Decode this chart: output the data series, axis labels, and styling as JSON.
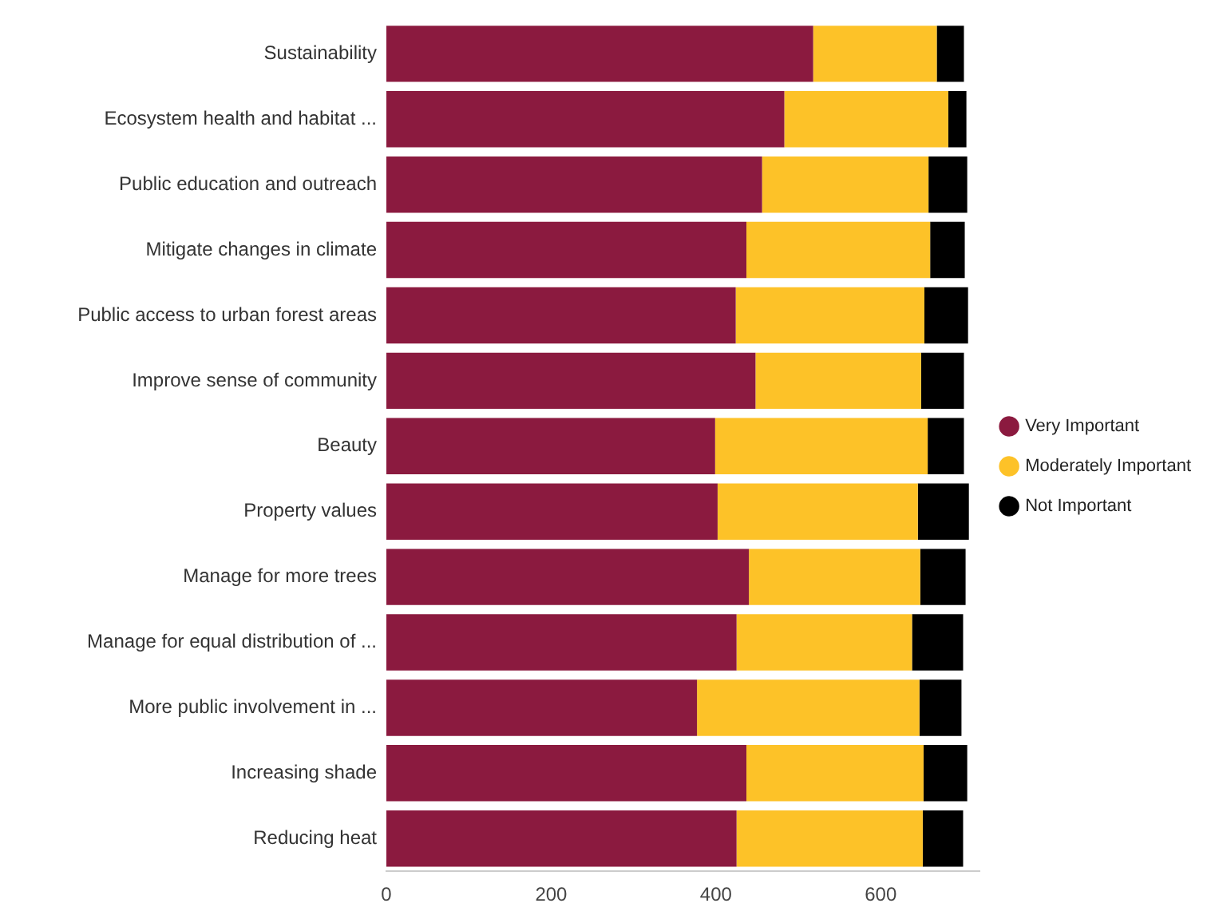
{
  "chart_data": {
    "type": "bar",
    "orientation": "horizontal",
    "stacked": true,
    "categories": [
      "Sustainability",
      "Ecosystem health and habitat ...",
      "Public education and outreach",
      "Mitigate changes in climate",
      "Public access to urban forest areas",
      "Improve sense of community",
      "Beauty",
      "Property values",
      "Manage for more trees",
      "Manage for equal distribution of ...",
      "More public involvement in ...",
      "Increasing shade",
      "Reducing heat"
    ],
    "series": [
      {
        "name": "Very Important",
        "color": "#8b1a3f",
        "values": [
          518,
          483,
          456,
          437,
          424,
          448,
          399,
          402,
          440,
          425,
          377,
          437,
          425
        ]
      },
      {
        "name": "Moderately Important",
        "color": "#fdc228",
        "values": [
          150,
          199,
          202,
          223,
          229,
          201,
          258,
          243,
          208,
          213,
          270,
          215,
          226
        ]
      },
      {
        "name": "Not Important",
        "color": "#000000",
        "values": [
          33,
          22,
          47,
          42,
          53,
          52,
          44,
          62,
          55,
          62,
          51,
          53,
          49
        ]
      }
    ],
    "xlim": [
      0,
      720
    ],
    "xticks": [
      0,
      200,
      400,
      600
    ],
    "grid": false,
    "legend": "right"
  }
}
